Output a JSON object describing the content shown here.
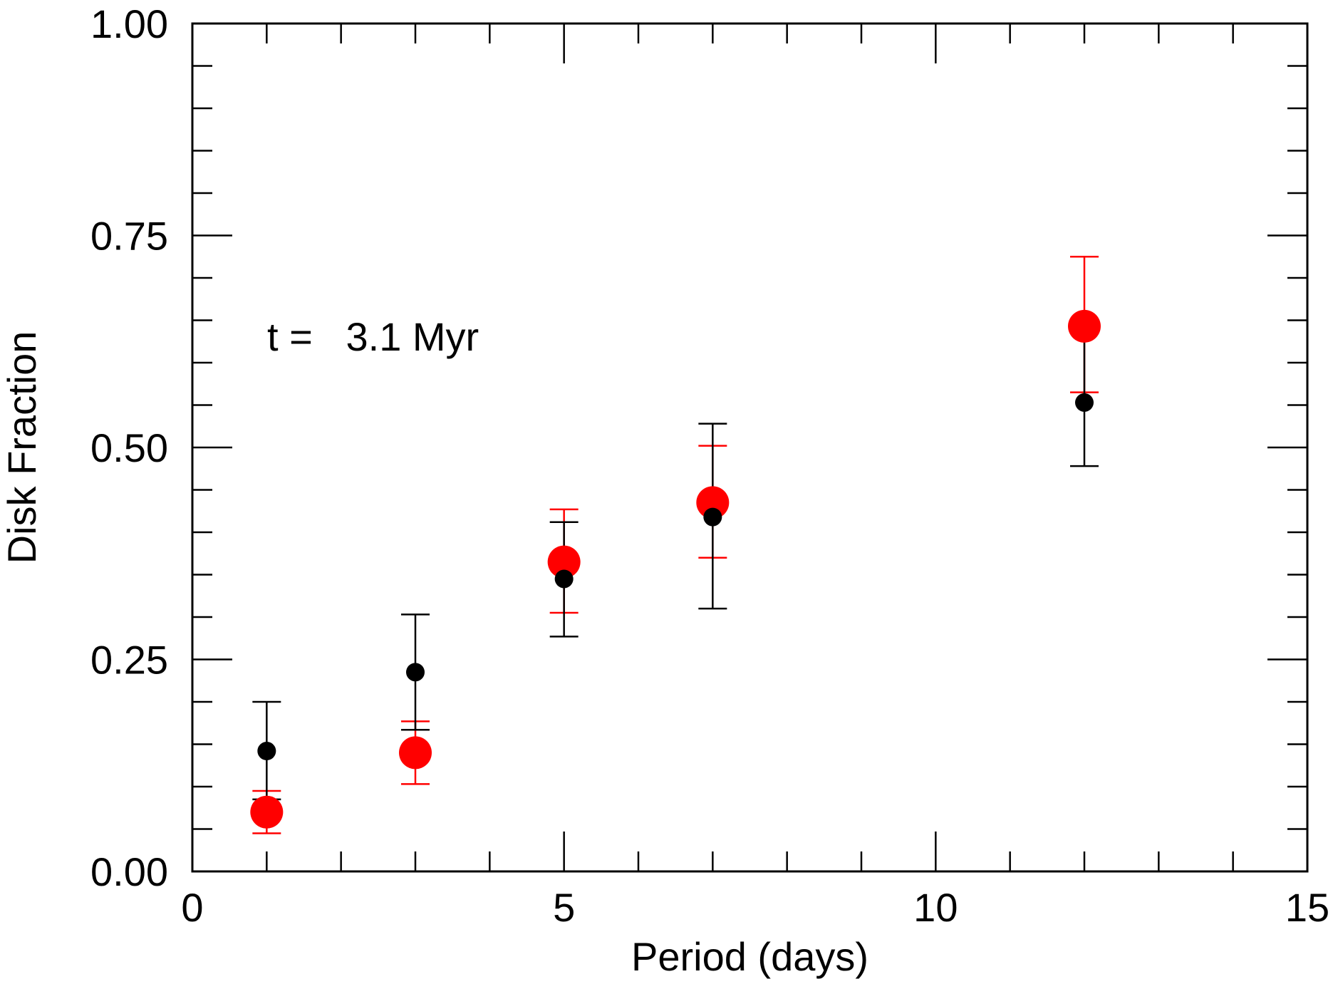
{
  "chart_data": {
    "type": "scatter",
    "title": "",
    "xlabel": "Period (days)",
    "ylabel": "Disk Fraction",
    "xlim": [
      0,
      15
    ],
    "ylim": [
      0,
      1
    ],
    "x_ticks": [
      "0",
      "5",
      "10",
      "15"
    ],
    "y_ticks": [
      "0.00",
      "0.25",
      "0.50",
      "0.75",
      "1.00"
    ],
    "annotation": "t =   3.1 Myr",
    "grid": false,
    "series": [
      {
        "name": "red",
        "color": "#ff0000",
        "marker": "large-circle",
        "points": [
          {
            "x": 1,
            "y": 0.07,
            "err_low": 0.045,
            "err_high": 0.095
          },
          {
            "x": 3,
            "y": 0.14,
            "err_low": 0.103,
            "err_high": 0.177
          },
          {
            "x": 5,
            "y": 0.365,
            "err_low": 0.305,
            "err_high": 0.427
          },
          {
            "x": 7,
            "y": 0.435,
            "err_low": 0.37,
            "err_high": 0.502
          },
          {
            "x": 12,
            "y": 0.643,
            "err_low": 0.565,
            "err_high": 0.725
          }
        ]
      },
      {
        "name": "black",
        "color": "#000000",
        "marker": "small-circle",
        "points": [
          {
            "x": 1,
            "y": 0.142,
            "err_low": 0.085,
            "err_high": 0.2
          },
          {
            "x": 3,
            "y": 0.235,
            "err_low": 0.167,
            "err_high": 0.303
          },
          {
            "x": 5,
            "y": 0.345,
            "err_low": 0.277,
            "err_high": 0.412
          },
          {
            "x": 7,
            "y": 0.418,
            "err_low": 0.31,
            "err_high": 0.528
          },
          {
            "x": 12,
            "y": 0.553,
            "err_low": 0.478,
            "err_high": 0.638
          }
        ]
      }
    ]
  }
}
